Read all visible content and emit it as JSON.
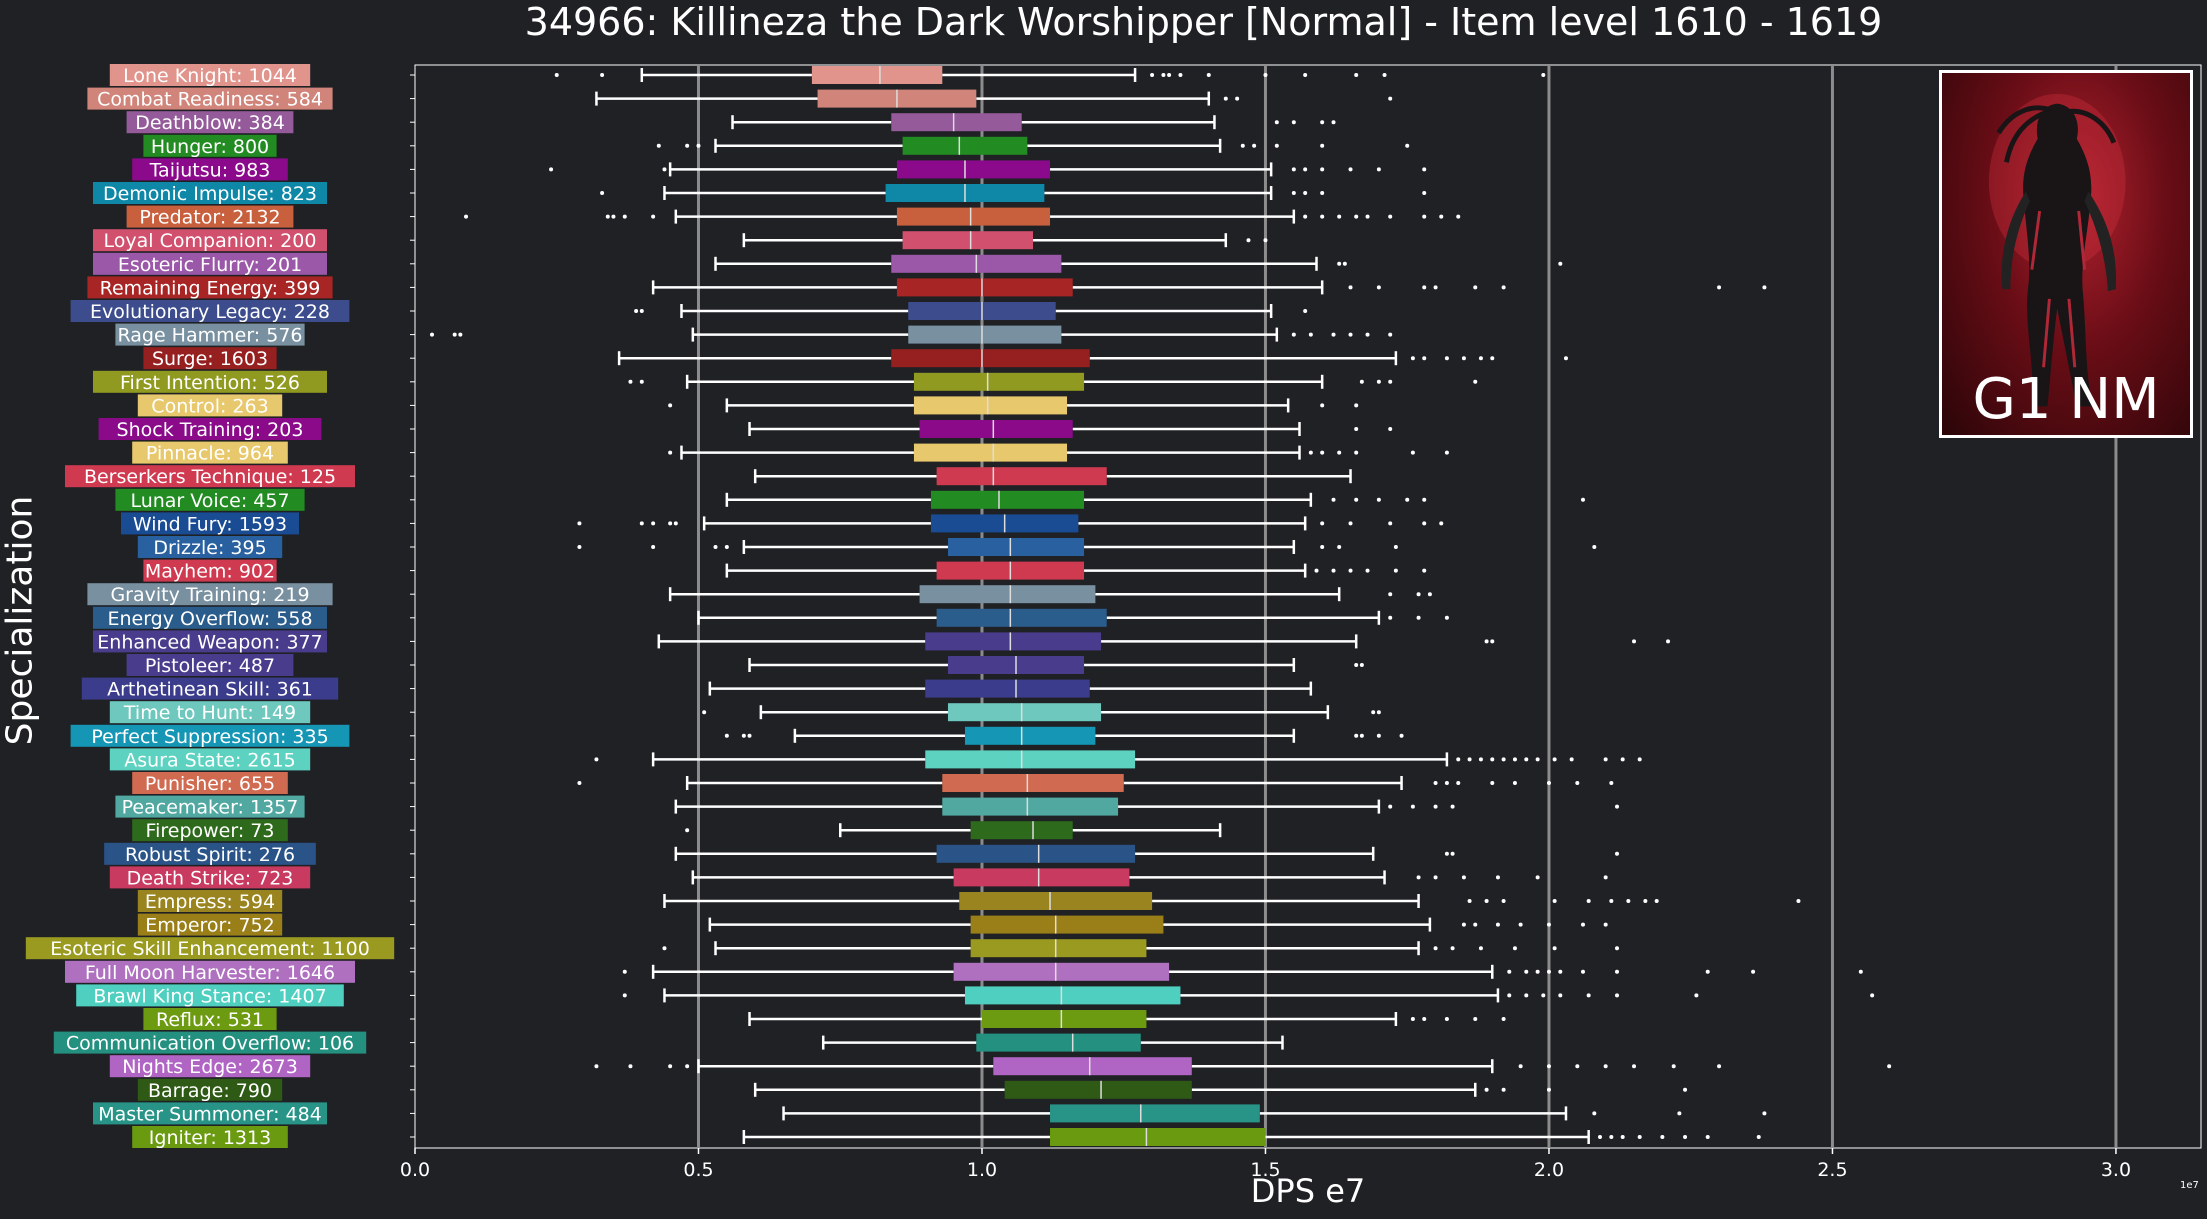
{
  "chart_data": {
    "type": "boxplot",
    "title": "34966: Killineza the Dark Worshipper [Normal] - Item level 1610 - 1619",
    "xlabel": "DPS e7",
    "ylabel": "Specialization",
    "x_offset_text": "1e7",
    "xlim": [
      0,
      3.15
    ],
    "xticks": [
      0.0,
      0.5,
      1.0,
      1.5,
      2.0,
      2.5,
      3.0
    ],
    "xtick_labels": [
      "0.0",
      "0.5",
      "1.0",
      "1.5",
      "2.0",
      "2.5",
      "3.0"
    ],
    "grid_major_x": [
      0.5,
      1.0,
      1.5,
      2.0,
      2.5,
      3.0
    ],
    "image_caption": "G1 NM",
    "series": [
      {
        "label": "Lone Knight: 1044",
        "color": "#e0948c",
        "min": 0.4,
        "q1": 0.7,
        "median": 0.82,
        "q3": 0.93,
        "max": 1.27,
        "outliers": [
          0.25,
          0.33,
          1.3,
          1.32,
          1.33,
          1.35,
          1.4,
          1.5,
          1.57,
          1.66,
          1.71,
          1.99
        ]
      },
      {
        "label": "Combat Readiness: 584",
        "color": "#d0847a",
        "min": 0.32,
        "q1": 0.71,
        "median": 0.85,
        "q3": 0.99,
        "max": 1.4,
        "outliers": [
          1.43,
          1.45,
          1.72
        ]
      },
      {
        "label": "Deathblow: 384",
        "color": "#945a9a",
        "min": 0.56,
        "q1": 0.84,
        "median": 0.95,
        "q3": 1.07,
        "max": 1.41,
        "outliers": [
          1.52,
          1.55,
          1.6,
          1.62
        ]
      },
      {
        "label": "Hunger: 800",
        "color": "#228b22",
        "min": 0.53,
        "q1": 0.86,
        "median": 0.96,
        "q3": 1.08,
        "max": 1.42,
        "outliers": [
          0.43,
          0.48,
          0.5,
          1.46,
          1.48,
          1.52,
          1.6,
          1.75
        ]
      },
      {
        "label": "Taijutsu: 983",
        "color": "#8b0a8b",
        "min": 0.45,
        "q1": 0.85,
        "median": 0.97,
        "q3": 1.12,
        "max": 1.51,
        "outliers": [
          0.24,
          0.44,
          1.55,
          1.57,
          1.6,
          1.65,
          1.7,
          1.78
        ]
      },
      {
        "label": "Demonic Impulse: 823",
        "color": "#0f88a8",
        "min": 0.44,
        "q1": 0.83,
        "median": 0.97,
        "q3": 1.11,
        "max": 1.51,
        "outliers": [
          0.33,
          1.55,
          1.57,
          1.6,
          1.78
        ]
      },
      {
        "label": "Predator: 2132",
        "color": "#c8603e",
        "min": 0.46,
        "q1": 0.85,
        "median": 0.98,
        "q3": 1.12,
        "max": 1.55,
        "outliers": [
          0.09,
          0.34,
          0.35,
          0.37,
          0.42,
          1.57,
          1.6,
          1.63,
          1.66,
          1.68,
          1.72,
          1.78,
          1.81,
          1.84
        ]
      },
      {
        "label": "Loyal Companion: 200",
        "color": "#d0506e",
        "min": 0.58,
        "q1": 0.86,
        "median": 0.98,
        "q3": 1.09,
        "max": 1.43,
        "outliers": [
          1.47,
          1.5
        ]
      },
      {
        "label": "Esoteric Flurry: 201",
        "color": "#9c58a8",
        "min": 0.53,
        "q1": 0.84,
        "median": 0.99,
        "q3": 1.14,
        "max": 1.59,
        "outliers": [
          1.63,
          1.64,
          2.02
        ]
      },
      {
        "label": "Remaining Energy: 399",
        "color": "#a82525",
        "min": 0.42,
        "q1": 0.85,
        "median": 1.0,
        "q3": 1.16,
        "max": 1.6,
        "outliers": [
          1.65,
          1.7,
          1.78,
          1.8,
          1.87,
          1.92,
          2.3,
          2.38
        ]
      },
      {
        "label": "Evolutionary Legacy: 228",
        "color": "#3c4c8c",
        "min": 0.47,
        "q1": 0.87,
        "median": 1.0,
        "q3": 1.13,
        "max": 1.51,
        "outliers": [
          0.39,
          0.4,
          1.57
        ]
      },
      {
        "label": "Rage Hammer: 576",
        "color": "#7890a0",
        "min": 0.49,
        "q1": 0.87,
        "median": 1.0,
        "q3": 1.14,
        "max": 1.52,
        "outliers": [
          0.03,
          0.07,
          0.08,
          1.55,
          1.58,
          1.62,
          1.65,
          1.68,
          1.72
        ]
      },
      {
        "label": "Surge: 1603",
        "color": "#962020",
        "min": 0.36,
        "q1": 0.84,
        "median": 1.0,
        "q3": 1.19,
        "max": 1.73,
        "outliers": [
          1.76,
          1.78,
          1.82,
          1.85,
          1.88,
          1.9,
          2.03
        ]
      },
      {
        "label": "First Intention: 526",
        "color": "#909a20",
        "min": 0.48,
        "q1": 0.88,
        "median": 1.01,
        "q3": 1.18,
        "max": 1.6,
        "outliers": [
          0.38,
          0.4,
          1.67,
          1.7,
          1.72,
          1.87
        ]
      },
      {
        "label": "Control: 263",
        "color": "#e8c86c",
        "min": 0.55,
        "q1": 0.88,
        "median": 1.01,
        "q3": 1.15,
        "max": 1.54,
        "outliers": [
          0.45,
          1.6,
          1.66
        ]
      },
      {
        "label": "Shock Training: 203",
        "color": "#8a0a8a",
        "min": 0.59,
        "q1": 0.89,
        "median": 1.02,
        "q3": 1.16,
        "max": 1.56,
        "outliers": [
          1.66,
          1.72
        ]
      },
      {
        "label": "Pinnacle: 964",
        "color": "#e8c86c",
        "min": 0.47,
        "q1": 0.88,
        "median": 1.02,
        "q3": 1.15,
        "max": 1.56,
        "outliers": [
          0.45,
          1.58,
          1.6,
          1.63,
          1.66,
          1.76,
          1.82
        ]
      },
      {
        "label": "Berserkers Technique: 125",
        "color": "#d03a50",
        "min": 0.6,
        "q1": 0.92,
        "median": 1.02,
        "q3": 1.22,
        "max": 1.65,
        "outliers": []
      },
      {
        "label": "Lunar Voice: 457",
        "color": "#228b22",
        "min": 0.55,
        "q1": 0.91,
        "median": 1.03,
        "q3": 1.18,
        "max": 1.58,
        "outliers": [
          1.62,
          1.66,
          1.7,
          1.75,
          1.78,
          2.06
        ]
      },
      {
        "label": "Wind Fury: 1593",
        "color": "#1a4c94",
        "min": 0.51,
        "q1": 0.91,
        "median": 1.04,
        "q3": 1.17,
        "max": 1.57,
        "outliers": [
          0.29,
          0.4,
          0.42,
          0.45,
          0.46,
          1.6,
          1.65,
          1.72,
          1.78,
          1.81
        ]
      },
      {
        "label": "Drizzle: 395",
        "color": "#2860a0",
        "min": 0.58,
        "q1": 0.94,
        "median": 1.05,
        "q3": 1.18,
        "max": 1.55,
        "outliers": [
          0.29,
          0.42,
          0.53,
          0.55,
          1.6,
          1.63,
          1.73,
          2.08
        ]
      },
      {
        "label": "Mayhem: 902",
        "color": "#d03a50",
        "min": 0.55,
        "q1": 0.92,
        "median": 1.05,
        "q3": 1.18,
        "max": 1.57,
        "outliers": [
          1.59,
          1.62,
          1.65,
          1.68,
          1.73,
          1.78
        ]
      },
      {
        "label": "Gravity Training: 219",
        "color": "#7890a0",
        "min": 0.45,
        "q1": 0.89,
        "median": 1.05,
        "q3": 1.2,
        "max": 1.63,
        "outliers": [
          1.72,
          1.77,
          1.79
        ]
      },
      {
        "label": "Energy Overflow: 558",
        "color": "#2a5c8c",
        "min": 0.5,
        "q1": 0.92,
        "median": 1.05,
        "q3": 1.22,
        "max": 1.7,
        "outliers": [
          1.72,
          1.77,
          1.82
        ]
      },
      {
        "label": "Enhanced Weapon: 377",
        "color": "#4a3c8c",
        "min": 0.43,
        "q1": 0.9,
        "median": 1.05,
        "q3": 1.21,
        "max": 1.66,
        "outliers": [
          1.89,
          1.9,
          2.15,
          2.21
        ]
      },
      {
        "label": "Pistoleer: 487",
        "color": "#4a3c8c",
        "min": 0.59,
        "q1": 0.94,
        "median": 1.06,
        "q3": 1.18,
        "max": 1.55,
        "outliers": [
          1.66,
          1.67
        ]
      },
      {
        "label": "Arthetinean Skill: 361",
        "color": "#3c3c8c",
        "min": 0.52,
        "q1": 0.9,
        "median": 1.06,
        "q3": 1.19,
        "max": 1.58,
        "outliers": []
      },
      {
        "label": "Time to Hunt: 149",
        "color": "#6ec8be",
        "min": 0.61,
        "q1": 0.94,
        "median": 1.07,
        "q3": 1.21,
        "max": 1.61,
        "outliers": [
          0.51,
          1.69,
          1.7
        ]
      },
      {
        "label": "Perfect Suppression: 335",
        "color": "#1496b4",
        "min": 0.67,
        "q1": 0.97,
        "median": 1.07,
        "q3": 1.2,
        "max": 1.55,
        "outliers": [
          0.55,
          0.58,
          0.59,
          1.66,
          1.67,
          1.7,
          1.74
        ]
      },
      {
        "label": "Asura State: 2615",
        "color": "#5ed2c0",
        "min": 0.42,
        "q1": 0.9,
        "median": 1.07,
        "q3": 1.27,
        "max": 1.82,
        "outliers": [
          0.32,
          1.84,
          1.86,
          1.88,
          1.9,
          1.92,
          1.94,
          1.96,
          1.98,
          2.01,
          2.04,
          2.1,
          2.13,
          2.16
        ]
      },
      {
        "label": "Punisher: 655",
        "color": "#d06a50",
        "min": 0.48,
        "q1": 0.93,
        "median": 1.08,
        "q3": 1.25,
        "max": 1.74,
        "outliers": [
          0.29,
          1.8,
          1.82,
          1.84,
          1.9,
          1.94,
          2.0,
          2.05,
          2.11
        ]
      },
      {
        "label": "Peacemaker: 1357",
        "color": "#50a8a0",
        "min": 0.46,
        "q1": 0.93,
        "median": 1.08,
        "q3": 1.24,
        "max": 1.7,
        "outliers": [
          1.72,
          1.76,
          1.8,
          1.83,
          2.12
        ]
      },
      {
        "label": "Firepower: 73",
        "color": "#2e6a1c",
        "min": 0.75,
        "q1": 0.98,
        "median": 1.09,
        "q3": 1.16,
        "max": 1.42,
        "outliers": [
          0.48
        ]
      },
      {
        "label": "Robust Spirit: 276",
        "color": "#2a5488",
        "min": 0.46,
        "q1": 0.92,
        "median": 1.1,
        "q3": 1.27,
        "max": 1.69,
        "outliers": [
          1.82,
          1.83,
          2.12
        ]
      },
      {
        "label": "Death Strike: 723",
        "color": "#c83a60",
        "min": 0.49,
        "q1": 0.95,
        "median": 1.1,
        "q3": 1.26,
        "max": 1.71,
        "outliers": [
          1.77,
          1.8,
          1.85,
          1.91,
          1.98,
          2.1
        ]
      },
      {
        "label": "Empress: 594",
        "color": "#9a8420",
        "min": 0.44,
        "q1": 0.96,
        "median": 1.12,
        "q3": 1.3,
        "max": 1.77,
        "outliers": [
          1.86,
          1.89,
          1.92,
          2.01,
          2.07,
          2.11,
          2.14,
          2.17,
          2.19,
          2.44
        ]
      },
      {
        "label": "Emperor: 752",
        "color": "#9a7e18",
        "min": 0.52,
        "q1": 0.98,
        "median": 1.13,
        "q3": 1.32,
        "max": 1.79,
        "outliers": [
          1.85,
          1.87,
          1.91,
          1.95,
          2.0,
          2.06,
          2.1
        ]
      },
      {
        "label": "Esoteric Skill Enhancement: 1100",
        "color": "#9a9a20",
        "min": 0.53,
        "q1": 0.98,
        "median": 1.13,
        "q3": 1.29,
        "max": 1.77,
        "outliers": [
          0.44,
          1.8,
          1.83,
          1.88,
          1.94,
          2.01,
          2.12
        ]
      },
      {
        "label": "Full Moon Harvester: 1646",
        "color": "#b070c0",
        "min": 0.42,
        "q1": 0.95,
        "median": 1.13,
        "q3": 1.33,
        "max": 1.9,
        "outliers": [
          0.37,
          1.93,
          1.96,
          1.98,
          2.0,
          2.02,
          2.06,
          2.12,
          2.28,
          2.36,
          2.55
        ]
      },
      {
        "label": "Brawl King Stance: 1407",
        "color": "#4ecfc0",
        "min": 0.44,
        "q1": 0.97,
        "median": 1.14,
        "q3": 1.35,
        "max": 1.91,
        "outliers": [
          0.37,
          1.93,
          1.96,
          1.99,
          2.02,
          2.07,
          2.12,
          2.26,
          2.57
        ]
      },
      {
        "label": "Reflux: 531",
        "color": "#6c9a10",
        "min": 0.59,
        "q1": 1.0,
        "median": 1.14,
        "q3": 1.29,
        "max": 1.73,
        "outliers": [
          1.76,
          1.78,
          1.82,
          1.87,
          1.92
        ]
      },
      {
        "label": "Communication Overflow: 106",
        "color": "#249080",
        "min": 0.72,
        "q1": 0.99,
        "median": 1.16,
        "q3": 1.28,
        "max": 1.53,
        "outliers": []
      },
      {
        "label": "Nights Edge: 2673",
        "color": "#b064c4",
        "min": 0.5,
        "q1": 1.02,
        "median": 1.19,
        "q3": 1.37,
        "max": 1.9,
        "outliers": [
          0.32,
          0.38,
          0.45,
          0.48,
          1.95,
          2.0,
          2.05,
          2.1,
          2.15,
          2.22,
          2.3,
          2.6
        ]
      },
      {
        "label": "Barrage: 790",
        "color": "#2e5a16",
        "min": 0.6,
        "q1": 1.04,
        "median": 1.21,
        "q3": 1.37,
        "max": 1.87,
        "outliers": [
          1.89,
          1.92,
          2.0,
          2.24
        ]
      },
      {
        "label": "Master Summoner: 484",
        "color": "#289488",
        "min": 0.65,
        "q1": 1.12,
        "median": 1.28,
        "q3": 1.49,
        "max": 2.03,
        "outliers": [
          2.08,
          2.23,
          2.38
        ]
      },
      {
        "label": "Igniter: 1313",
        "color": "#6a9a10",
        "min": 0.58,
        "q1": 1.12,
        "median": 1.29,
        "q3": 1.5,
        "max": 2.07,
        "outliers": [
          2.09,
          2.11,
          2.13,
          2.16,
          2.2,
          2.24,
          2.28,
          2.37
        ]
      }
    ]
  }
}
